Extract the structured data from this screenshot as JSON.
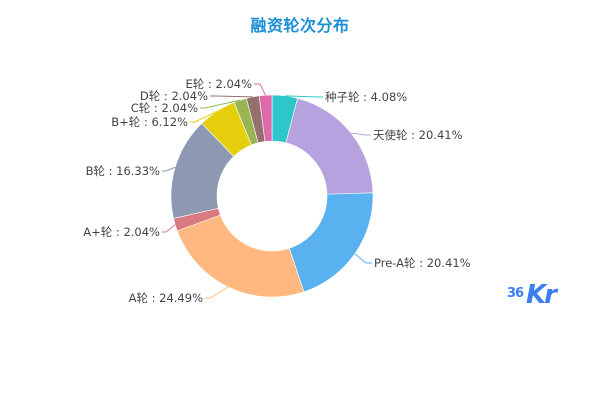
{
  "chart_data": {
    "type": "pie",
    "variant": "donut",
    "title": "融资轮次分布",
    "categories": [
      "种子轮",
      "天使轮",
      "Pre-A轮",
      "A轮",
      "A+轮",
      "B轮",
      "B+轮",
      "C轮",
      "D轮",
      "E轮"
    ],
    "values": [
      4.08,
      20.41,
      20.41,
      24.49,
      2.04,
      16.33,
      6.12,
      2.04,
      2.04,
      2.04
    ],
    "unit": "%",
    "labels": [
      "种子轮 : 4.08%",
      "天使轮 : 20.41%",
      "Pre-A轮 : 20.41%",
      "A轮 : 24.49%",
      "A+轮 : 2.04%",
      "B轮 : 16.33%",
      "B+轮 : 6.12%",
      "C轮 : 2.04%",
      "D轮 : 2.04%",
      "E轮 : 2.04%"
    ],
    "colors": [
      "#2ec7c9",
      "#b6a2de",
      "#5ab1ef",
      "#ffb980",
      "#d87a80",
      "#8d98b3",
      "#e5cf0d",
      "#97b552",
      "#95706d",
      "#dc69aa"
    ],
    "start_angle": "12 o'clock",
    "direction": "clockwise",
    "legend": "none (outside labels with leader lines)"
  },
  "header": {
    "title": "融资轮次分布"
  },
  "watermark": {
    "num": "36",
    "text": "Kr"
  }
}
